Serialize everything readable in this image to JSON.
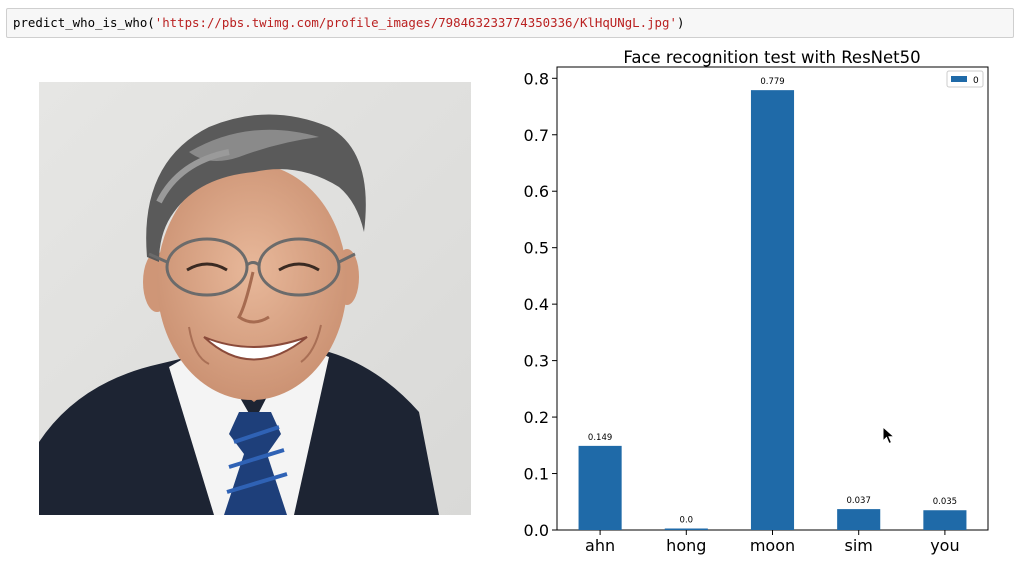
{
  "code_cell": {
    "function_name": "predict_who_is_who",
    "open_paren": "(",
    "argument": "'https://pbs.twimg.com/profile_images/798463233774350336/KlHqUNgL.jpg'",
    "close_paren": ")"
  },
  "colors": {
    "bar": "#1f6aa8",
    "code_string": "#ba2121",
    "cell_background": "#f7f7f7"
  },
  "photo": {
    "icon": "portrait-photo"
  },
  "chart_data": {
    "type": "bar",
    "title": "Face recognition test with ResNet50",
    "xlabel": "",
    "ylabel": "",
    "categories": [
      "ahn",
      "hong",
      "moon",
      "sim",
      "you"
    ],
    "series": [
      {
        "name": "0",
        "values": [
          0.149,
          0.0,
          0.779,
          0.037,
          0.035
        ]
      }
    ],
    "data_labels": [
      "0.149",
      "0.0",
      "0.779",
      "0.037",
      "0.035"
    ],
    "ylim": [
      0,
      0.82
    ],
    "yticks": [
      "0.0",
      "0.1",
      "0.2",
      "0.3",
      "0.4",
      "0.5",
      "0.6",
      "0.7",
      "0.8"
    ],
    "grid": false,
    "legend_position": "top-right"
  }
}
